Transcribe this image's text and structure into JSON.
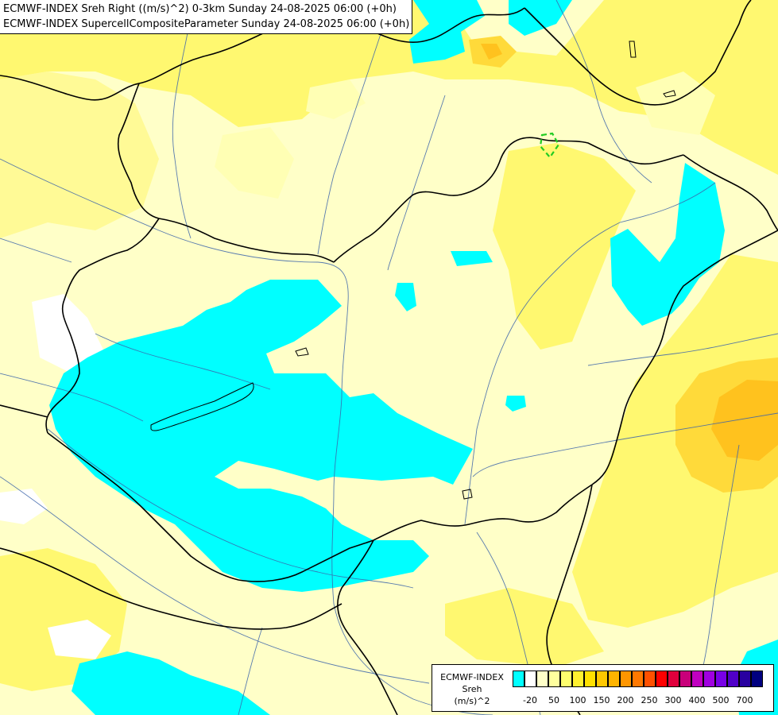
{
  "header": {
    "title_line_1": "ECMWF-INDEX Sreh Right ((m/s)^2) 0-3km Sunday 24-08-2025 06:00 (+0h)",
    "title_line_2": "ECMWF-INDEX SupercellCompositeParameter Sunday 24-08-2025 06:00 (+0h)"
  },
  "legend": {
    "lines": [
      "ECMWF-INDEX",
      "Sreh",
      "(m/s)^2"
    ],
    "colors": [
      "#00FFFF",
      "#FFFFFF",
      "#FFFFC8",
      "#FFFF9E",
      "#FFFF6E",
      "#FFF030",
      "#FFE000",
      "#FFC800",
      "#FFB400",
      "#FF9600",
      "#FF7800",
      "#FF5000",
      "#FF0000",
      "#E0003C",
      "#C8007A",
      "#C000C0",
      "#A000E0",
      "#7800E6",
      "#5000C8",
      "#2800A0",
      "#000080"
    ],
    "ticks": [
      "-20",
      "50",
      "100",
      "150",
      "200",
      "250",
      "300",
      "400",
      "500",
      "700"
    ]
  },
  "map": {
    "palette": {
      "background": "#FFFFC8",
      "pale": "#FFFFB4",
      "yellow": "#FFF870",
      "yellow_light": "#FFFA96",
      "gold": "#FFDA3A",
      "orange": "#FFC21E",
      "white": "#FFFFFF",
      "cyan": "#00FFFF",
      "border": "#000000",
      "river": "#3C64AA",
      "scp_contour": "#22CC22"
    }
  }
}
